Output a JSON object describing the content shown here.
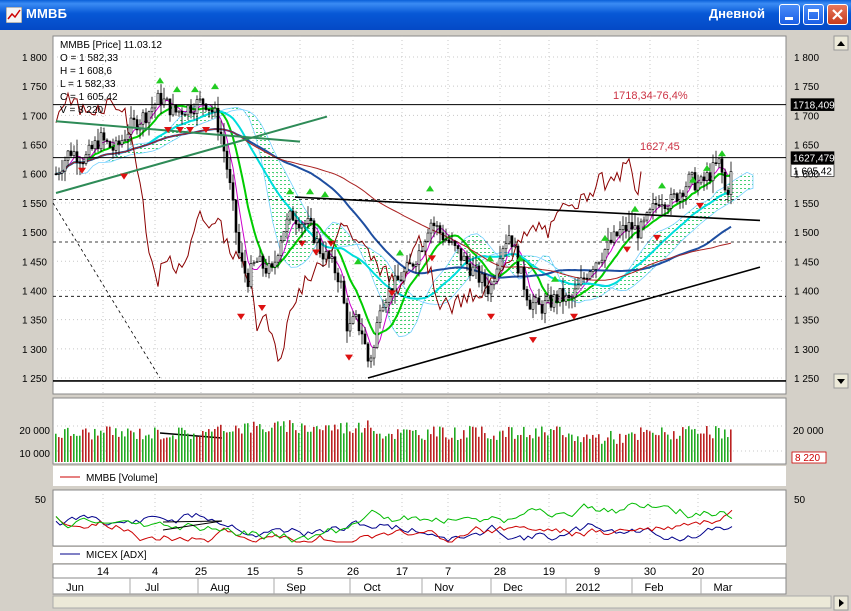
{
  "window": {
    "title": "ММВБ",
    "timeframe": "Дневной"
  },
  "chart_data": [
    {
      "type": "candlestick",
      "name": "price-panel",
      "legend": [
        "ММВБ [Price] 11.03.12",
        "O = 1 582,33",
        "H = 1 608,6",
        "L = 1 582,33",
        "C = 1 605,42",
        "V = 8 220"
      ],
      "ylim": [
        1230,
        1830
      ],
      "yticks": [
        1250,
        1300,
        1350,
        1400,
        1450,
        1500,
        1550,
        1600,
        1650,
        1700,
        1750,
        1800
      ],
      "ytick_labels": [
        "1 250",
        "1 300",
        "1 350",
        "1 400",
        "1 450",
        "1 500",
        "1 550",
        "1 600",
        "1 650",
        "1 700",
        "1 750",
        "1 800"
      ],
      "right_tick_labels": [
        "1 250",
        "1 300",
        "1 350",
        "1 400",
        "1 450",
        "1 500",
        "1 550",
        "1 600",
        "1 650",
        "1 700",
        "1 750",
        "1 800"
      ],
      "right_markers": [
        {
          "label": "1718,409",
          "value": 1718.409
        },
        {
          "label": "1627,479",
          "value": 1627.479
        },
        {
          "label": "1 605,42",
          "value": 1605.42
        }
      ],
      "annotations": [
        {
          "text": "1718,34-76,4%",
          "value": 1718.34
        },
        {
          "text": "1627,45",
          "value": 1627.45
        }
      ],
      "horizontal_levels": [
        1718.4,
        1627.5
      ],
      "dashed_levels": [
        1556,
        1483,
        1390
      ],
      "grid": true
    },
    {
      "type": "bar",
      "name": "volume-panel",
      "legend": "ММВБ [Volume]",
      "yticks": [
        10000,
        20000
      ],
      "ytick_labels": [
        "10 000",
        "20 000"
      ],
      "last_value_label": "8 220",
      "grid": true
    },
    {
      "type": "line",
      "name": "adx-panel",
      "legend": "MICEX [ADX]",
      "yticks": [
        50
      ],
      "ytick_labels": [
        "50"
      ],
      "series_colors": [
        "#00008b",
        "#cc0000",
        "#00bb00"
      ],
      "grid": true
    }
  ],
  "xaxis": {
    "days": [
      "14",
      "4",
      "25",
      "15",
      "5",
      "26",
      "17",
      "7",
      "28",
      "19",
      "9",
      "30",
      "20"
    ],
    "months": [
      "Jun",
      "Jul",
      "Aug",
      "Sep",
      "Oct",
      "Nov",
      "Dec",
      "2012",
      "Feb",
      "Mar"
    ]
  },
  "colors": {
    "up": "#00aa00",
    "down": "#cc0000",
    "titlebar": "#0a5fd8"
  }
}
